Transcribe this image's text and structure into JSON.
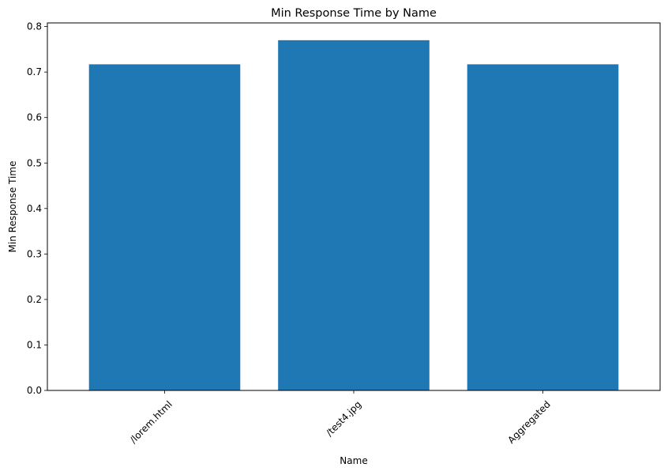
{
  "chart_data": {
    "type": "bar",
    "title": "Min Response Time by Name",
    "xlabel": "Name",
    "ylabel": "Min Response Time",
    "categories": [
      "/lorem.html",
      "/test4.jpg",
      "Aggregated"
    ],
    "values": [
      0.717,
      0.77,
      0.717
    ],
    "ylim": [
      0,
      0.808
    ],
    "yticks": [
      0.0,
      0.1,
      0.2,
      0.3,
      0.4,
      0.5,
      0.6,
      0.7,
      0.8
    ],
    "ytick_labels": [
      "0.0",
      "0.1",
      "0.2",
      "0.3",
      "0.4",
      "0.5",
      "0.6",
      "0.7",
      "0.8"
    ],
    "xtick_rotation_deg": 45,
    "grid": false,
    "legend": "none",
    "bar_color": "#1f77b4"
  }
}
